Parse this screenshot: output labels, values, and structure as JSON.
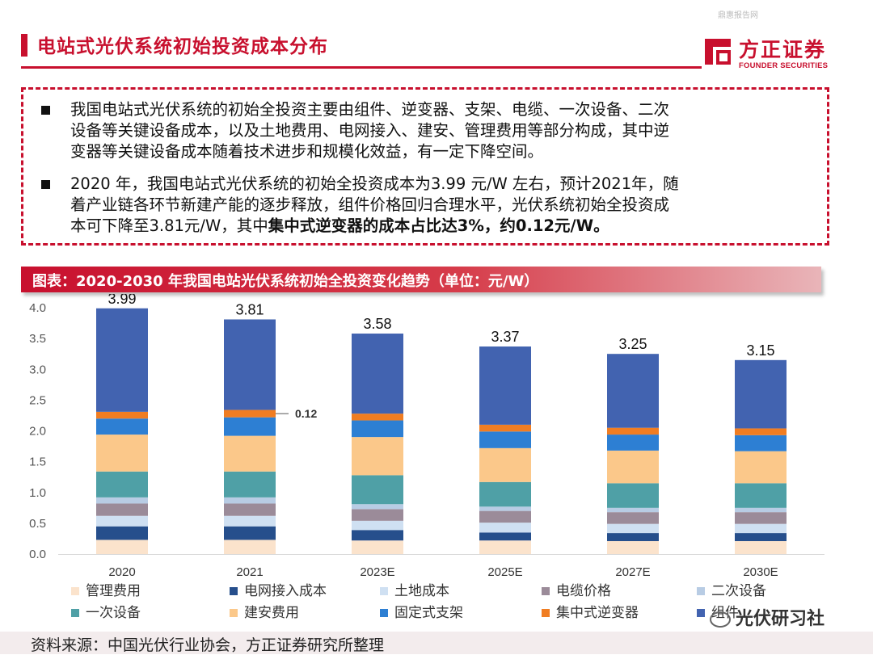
{
  "header": {
    "watermark": "鼎惠报告网",
    "title": "电站式光伏系统初始投资成本分布",
    "logo_cn": "方正证券",
    "logo_en": "FOUNDER SECURITIES"
  },
  "bullets": [
    {
      "lines": [
        "我国电站式光伏系统的初始全投资主要由组件、逆变器、支架、电缆、一次设备、二次",
        "设备等关键设备成本，以及土地费用、电网接入、建安、管理费用等部分构成，其中逆",
        "变器等关键设备成本随着技术进步和规模化效益，有一定下降空间。"
      ]
    },
    {
      "line1": "2020 年，我国电站式光伏系统的初始全投资成本为3.99 元/W 左右，预计2021年，随",
      "line2": "着产业链各环节新建产能的逐步释放，组件价格回归合理水平，光伏系统初始全投资成",
      "line3_plain": "本可下降至3.81元/W，其中",
      "line3_bold": "集中式逆变器的成本占比达3%，约0.12元/W。"
    }
  ],
  "chart_banner": "图表：2020-2030 年我国电站光伏系统初始全投资变化趋势（单位：元/W）",
  "chart_data": {
    "type": "bar",
    "stacked": true,
    "categories": [
      "2020",
      "2021",
      "2023E",
      "2025E",
      "2027E",
      "2030E"
    ],
    "ylim": [
      0,
      4.0
    ],
    "yticks": [
      "0.0",
      "0.5",
      "1.0",
      "1.5",
      "2.0",
      "2.5",
      "3.0",
      "3.5",
      "4.0"
    ],
    "totals": [
      3.99,
      3.81,
      3.58,
      3.37,
      3.25,
      3.15
    ],
    "total_labels": [
      "3.99",
      "3.81",
      "3.58",
      "3.37",
      "3.25",
      "3.15"
    ],
    "annotation": {
      "text": "0.12",
      "category": "2021",
      "series": "集中式逆变器"
    },
    "grid": false,
    "legend_position": "bottom",
    "series": [
      {
        "name": "管理费用",
        "color": "#fbe3cc",
        "values": [
          0.23,
          0.23,
          0.22,
          0.22,
          0.21,
          0.21
        ]
      },
      {
        "name": "电网接入成本",
        "color": "#264f8c",
        "values": [
          0.22,
          0.22,
          0.17,
          0.13,
          0.13,
          0.13
        ]
      },
      {
        "name": "土地成本",
        "color": "#cfe0f2",
        "values": [
          0.17,
          0.17,
          0.15,
          0.16,
          0.15,
          0.15
        ]
      },
      {
        "name": "电缆价格",
        "color": "#9b8b99",
        "values": [
          0.2,
          0.2,
          0.19,
          0.19,
          0.19,
          0.19
        ]
      },
      {
        "name": "二次设备",
        "color": "#b8cce4",
        "values": [
          0.1,
          0.1,
          0.08,
          0.07,
          0.07,
          0.07
        ]
      },
      {
        "name": "一次设备",
        "color": "#4fa0a6",
        "values": [
          0.42,
          0.42,
          0.47,
          0.4,
          0.4,
          0.4
        ]
      },
      {
        "name": "建安费用",
        "color": "#fbc88a",
        "values": [
          0.6,
          0.58,
          0.62,
          0.55,
          0.53,
          0.52
        ]
      },
      {
        "name": "固定式支架",
        "color": "#2d7fd3",
        "values": [
          0.26,
          0.3,
          0.27,
          0.27,
          0.26,
          0.26
        ]
      },
      {
        "name": "集中式逆变器",
        "color": "#f07d22",
        "values": [
          0.11,
          0.12,
          0.11,
          0.11,
          0.11,
          0.11
        ]
      },
      {
        "name": "组件",
        "color": "#4263b0",
        "values": [
          1.68,
          1.47,
          1.3,
          1.27,
          1.2,
          1.11
        ]
      }
    ]
  },
  "source": "资料来源：中国光伏行业协会，方正证券研究所整理",
  "wechat_label": "光伏研习社"
}
